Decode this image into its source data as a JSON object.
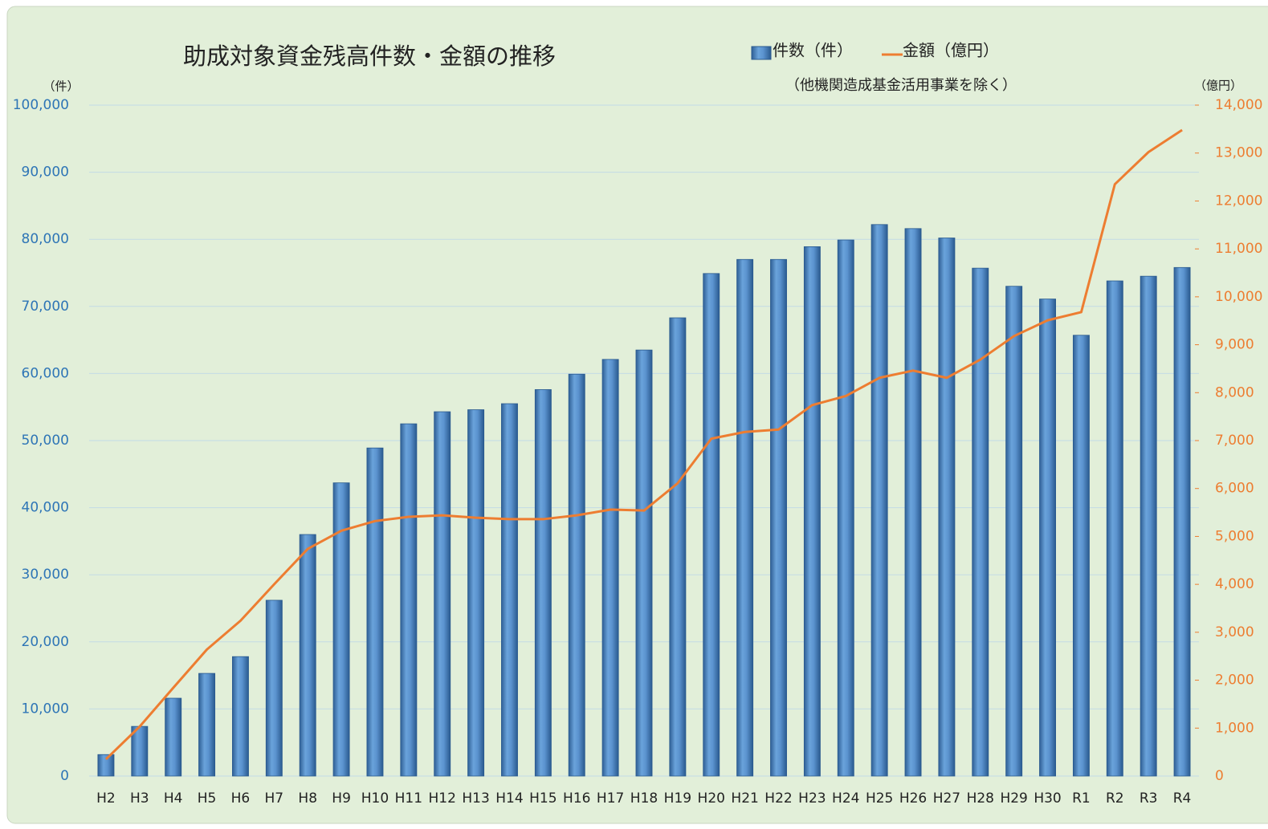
{
  "chart_data": {
    "type": "bar-line",
    "title": "助成対象資金残高件数・金額の推移",
    "subtitle": "（他機関造成基金活用事業を除く）",
    "y_label": "（件）",
    "y2_label": "（億円）",
    "categories": [
      "H2",
      "H3",
      "H4",
      "H5",
      "H6",
      "H7",
      "H8",
      "H9",
      "H10",
      "H11",
      "H12",
      "H13",
      "H14",
      "H15",
      "H16",
      "H17",
      "H18",
      "H19",
      "H20",
      "H21",
      "H22",
      "H23",
      "H24",
      "H25",
      "H26",
      "H27",
      "H28",
      "H29",
      "H30",
      "R1",
      "R2",
      "R3",
      "R4"
    ],
    "series": [
      {
        "name": "件数（件）",
        "type": "bar",
        "color": "#4a86c8",
        "values": [
          3200,
          7400,
          11600,
          15300,
          17800,
          26200,
          36000,
          43700,
          48900,
          52500,
          54300,
          54600,
          55500,
          57600,
          59900,
          62100,
          63500,
          68300,
          74900,
          77000,
          77000,
          78900,
          79900,
          82200,
          81600,
          80200,
          75700,
          73000,
          71100,
          65700,
          73800,
          74500,
          75800
        ]
      },
      {
        "name": "金額（億円）",
        "type": "line",
        "axis": "y2",
        "color": "#ed7d31",
        "values": [
          350,
          1030,
          1840,
          2640,
          3240,
          4000,
          4740,
          5120,
          5320,
          5410,
          5440,
          5390,
          5360,
          5360,
          5440,
          5560,
          5540,
          6110,
          7040,
          7180,
          7230,
          7740,
          7930,
          8310,
          8460,
          8310,
          8690,
          9180,
          9510,
          9680,
          12350,
          13020,
          13480
        ]
      }
    ],
    "ylim": [
      0,
      100000
    ],
    "yticks": [
      0,
      {
        "value": 10000,
        "label": "10,000"
      },
      {
        "value": 20000,
        "label": "20,000"
      },
      {
        "value": 30000,
        "label": "30,000"
      },
      {
        "value": 40000,
        "label": "40,000"
      },
      {
        "value": 50000,
        "label": "50,000"
      },
      {
        "value": 60000,
        "label": "60,000"
      },
      {
        "value": 70000,
        "label": "70,000"
      },
      {
        "value": 80000,
        "label": "80,000"
      },
      {
        "value": 90000,
        "label": "90,000"
      },
      {
        "value": 100000,
        "label": "100,000"
      }
    ],
    "y2lim": [
      0,
      14000
    ],
    "y2ticks": [
      0,
      {
        "value": 1000,
        "label": "1,000"
      },
      {
        "value": 2000,
        "label": "2,000"
      },
      {
        "value": 3000,
        "label": "3,000"
      },
      {
        "value": 4000,
        "label": "4,000"
      },
      {
        "value": 5000,
        "label": "5,000"
      },
      {
        "value": 6000,
        "label": "6,000"
      },
      {
        "value": 7000,
        "label": "7,000"
      },
      {
        "value": 8000,
        "label": "8,000"
      },
      {
        "value": 9000,
        "label": "9,000"
      },
      {
        "value": 10000,
        "label": "10,000"
      },
      {
        "value": 11000,
        "label": "11,000"
      },
      {
        "value": 12000,
        "label": "12,000"
      },
      {
        "value": 13000,
        "label": "13,000"
      },
      {
        "value": 14000,
        "label": "14,000"
      }
    ],
    "grid": true,
    "legend": "top"
  }
}
